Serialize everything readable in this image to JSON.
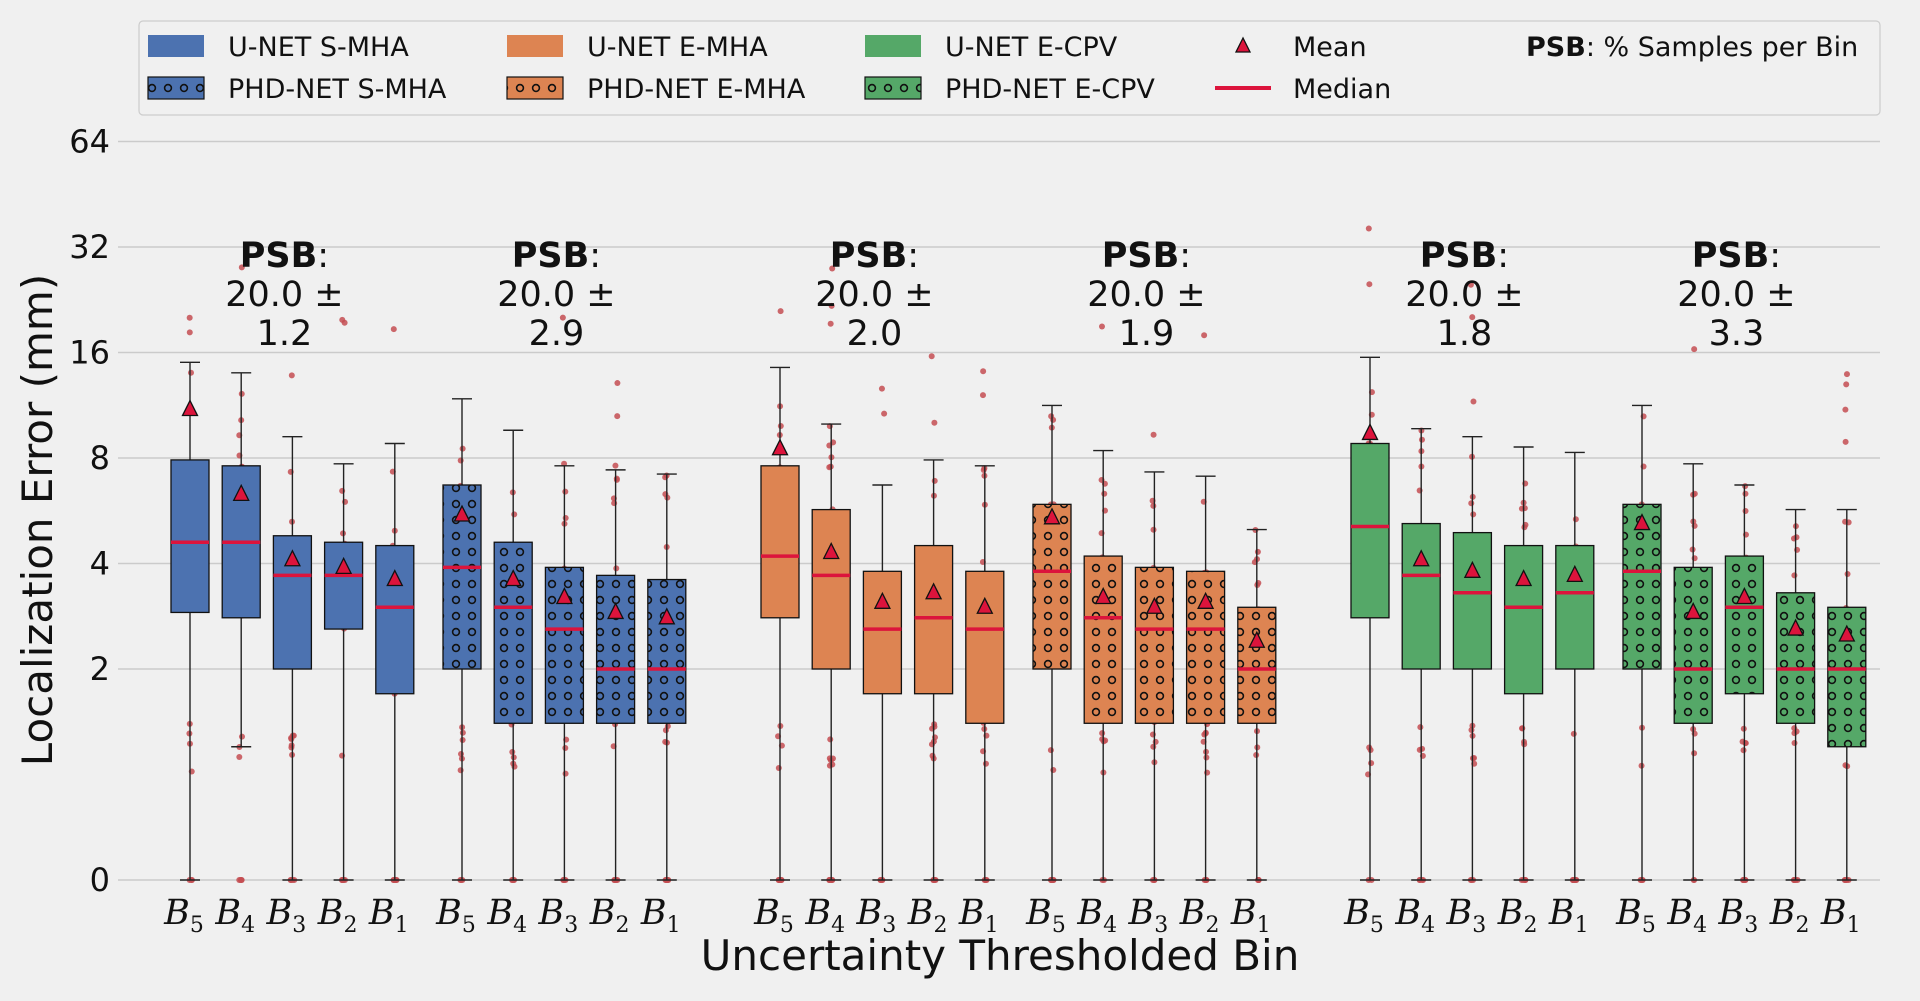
{
  "chart_data": {
    "type": "box",
    "xlabel": "Uncertainty Thresholded Bin",
    "ylabel": "Localization Error (mm)",
    "y_scale": "symlog",
    "y_ticks": [
      0,
      2,
      4,
      8,
      16,
      32,
      64
    ],
    "y_tick_labels": [
      "0",
      "2",
      "4",
      "8",
      "16",
      "32",
      "64"
    ],
    "bin_labels": [
      "B5",
      "B4",
      "B3",
      "B2",
      "B1"
    ],
    "colors": {
      "s_mha": "#4c72b0",
      "e_mha": "#dd8452",
      "e_cpv": "#55a868",
      "median": "#dc143c",
      "mean": "#dc143c",
      "points": "#c44e52"
    },
    "legend": {
      "entries": [
        {
          "label": "U-NET S-MHA",
          "color": "#4c72b0",
          "hatch": false
        },
        {
          "label": "PHD-NET S-MHA",
          "color": "#4c72b0",
          "hatch": true
        },
        {
          "label": "U-NET E-MHA",
          "color": "#dd8452",
          "hatch": false
        },
        {
          "label": "PHD-NET E-MHA",
          "color": "#dd8452",
          "hatch": true
        },
        {
          "label": "U-NET E-CPV",
          "color": "#55a868",
          "hatch": false
        },
        {
          "label": "PHD-NET E-CPV",
          "color": "#55a868",
          "hatch": true
        },
        {
          "label": "Mean",
          "marker": "triangle"
        },
        {
          "label": "Median",
          "marker": "line"
        }
      ],
      "psb_note_bold": "PSB",
      "psb_note_rest": ": % Samples per Bin"
    },
    "groups": [
      {
        "name": "U-NET S-MHA",
        "color": "#4c72b0",
        "hatch": false,
        "psb_bold": "PSB",
        "psb_colon": ":",
        "psb_value": "20.0 ±",
        "psb_std": "1.2",
        "boxes": [
          {
            "bin": "B5",
            "q1": 2.9,
            "median": 4.6,
            "q3": 7.9,
            "whisker_low": 0,
            "whisker_high": 15,
            "mean": 11.0
          },
          {
            "bin": "B4",
            "q1": 2.8,
            "median": 4.6,
            "q3": 7.6,
            "whisker_low": 1.2,
            "whisker_high": 14,
            "mean": 6.3
          },
          {
            "bin": "B3",
            "q1": 2.0,
            "median": 3.7,
            "q3": 4.8,
            "whisker_low": 0,
            "whisker_high": 9.2,
            "mean": 4.1
          },
          {
            "bin": "B2",
            "q1": 2.6,
            "median": 3.7,
            "q3": 4.6,
            "whisker_low": 0,
            "whisker_high": 7.7,
            "mean": 3.9
          },
          {
            "bin": "B1",
            "q1": 1.7,
            "median": 3.0,
            "q3": 4.5,
            "whisker_low": 0,
            "whisker_high": 8.8,
            "mean": 3.6
          }
        ]
      },
      {
        "name": "PHD-NET S-MHA",
        "color": "#4c72b0",
        "hatch": true,
        "psb_bold": "PSB",
        "psb_colon": ":",
        "psb_value": "20.0 ±",
        "psb_std": "2.9",
        "boxes": [
          {
            "bin": "B5",
            "q1": 2.0,
            "median": 3.9,
            "q3": 6.7,
            "whisker_low": 0,
            "whisker_high": 11.8,
            "mean": 5.5
          },
          {
            "bin": "B4",
            "q1": 1.4,
            "median": 3.0,
            "q3": 4.6,
            "whisker_low": 0,
            "whisker_high": 9.6,
            "mean": 3.6
          },
          {
            "bin": "B3",
            "q1": 1.4,
            "median": 2.6,
            "q3": 3.9,
            "whisker_low": 0,
            "whisker_high": 7.6,
            "mean": 3.2
          },
          {
            "bin": "B2",
            "q1": 1.4,
            "median": 2.0,
            "q3": 3.7,
            "whisker_low": 0,
            "whisker_high": 7.4,
            "mean": 2.9
          },
          {
            "bin": "B1",
            "q1": 1.4,
            "median": 2.0,
            "q3": 3.6,
            "whisker_low": 0,
            "whisker_high": 7.2,
            "mean": 2.8
          }
        ]
      },
      {
        "name": "U-NET E-MHA",
        "color": "#dd8452",
        "hatch": false,
        "psb_bold": "PSB",
        "psb_colon": ":",
        "psb_value": "20.0 ±",
        "psb_std": "2.0",
        "boxes": [
          {
            "bin": "B5",
            "q1": 2.8,
            "median": 4.2,
            "q3": 7.6,
            "whisker_low": 0,
            "whisker_high": 14.5,
            "mean": 8.5
          },
          {
            "bin": "B4",
            "q1": 2.0,
            "median": 3.7,
            "q3": 5.7,
            "whisker_low": 0,
            "whisker_high": 10.0,
            "mean": 4.3
          },
          {
            "bin": "B3",
            "q1": 1.7,
            "median": 2.6,
            "q3": 3.8,
            "whisker_low": 0,
            "whisker_high": 6.7,
            "mean": 3.1
          },
          {
            "bin": "B2",
            "q1": 1.7,
            "median": 2.8,
            "q3": 4.5,
            "whisker_low": 0,
            "whisker_high": 7.9,
            "mean": 3.3
          },
          {
            "bin": "B1",
            "q1": 1.4,
            "median": 2.6,
            "q3": 3.8,
            "whisker_low": 0,
            "whisker_high": 7.6,
            "mean": 3.0
          }
        ]
      },
      {
        "name": "PHD-NET E-MHA",
        "color": "#dd8452",
        "hatch": true,
        "psb_bold": "PSB",
        "psb_colon": ":",
        "psb_value": "20.0 ±",
        "psb_std": "1.9",
        "boxes": [
          {
            "bin": "B5",
            "q1": 2.0,
            "median": 3.8,
            "q3": 5.9,
            "whisker_low": 0,
            "whisker_high": 11.3,
            "mean": 5.4
          },
          {
            "bin": "B4",
            "q1": 1.4,
            "median": 2.8,
            "q3": 4.2,
            "whisker_low": 0,
            "whisker_high": 8.4,
            "mean": 3.2
          },
          {
            "bin": "B3",
            "q1": 1.4,
            "median": 2.6,
            "q3": 3.9,
            "whisker_low": 0,
            "whisker_high": 7.3,
            "mean": 3.0
          },
          {
            "bin": "B2",
            "q1": 1.4,
            "median": 2.6,
            "q3": 3.8,
            "whisker_low": 0,
            "whisker_high": 7.1,
            "mean": 3.1
          },
          {
            "bin": "B1",
            "q1": 1.4,
            "median": 2.0,
            "q3": 3.0,
            "whisker_low": 0,
            "whisker_high": 5.0,
            "mean": 2.4
          }
        ]
      },
      {
        "name": "U-NET E-CPV",
        "color": "#55a868",
        "hatch": false,
        "psb_bold": "PSB",
        "psb_colon": ":",
        "psb_value": "20.0 ±",
        "psb_std": "1.8",
        "boxes": [
          {
            "bin": "B5",
            "q1": 2.8,
            "median": 5.1,
            "q3": 8.8,
            "whisker_low": 0,
            "whisker_high": 15.5,
            "mean": 9.4
          },
          {
            "bin": "B4",
            "q1": 2.0,
            "median": 3.7,
            "q3": 5.2,
            "whisker_low": 0,
            "whisker_high": 9.7,
            "mean": 4.1
          },
          {
            "bin": "B3",
            "q1": 2.0,
            "median": 3.3,
            "q3": 4.9,
            "whisker_low": 0,
            "whisker_high": 9.2,
            "mean": 3.8
          },
          {
            "bin": "B2",
            "q1": 1.7,
            "median": 3.0,
            "q3": 4.5,
            "whisker_low": 0,
            "whisker_high": 8.6,
            "mean": 3.6
          },
          {
            "bin": "B1",
            "q1": 2.0,
            "median": 3.3,
            "q3": 4.5,
            "whisker_low": 0,
            "whisker_high": 8.3,
            "mean": 3.7
          }
        ]
      },
      {
        "name": "PHD-NET E-CPV",
        "color": "#55a868",
        "hatch": true,
        "psb_bold": "PSB",
        "psb_colon": ":",
        "psb_value": "20.0 ±",
        "psb_std": "3.3",
        "boxes": [
          {
            "bin": "B5",
            "q1": 2.0,
            "median": 3.8,
            "q3": 5.9,
            "whisker_low": 0,
            "whisker_high": 11.3,
            "mean": 5.2
          },
          {
            "bin": "B4",
            "q1": 1.4,
            "median": 2.0,
            "q3": 3.9,
            "whisker_low": 0,
            "whisker_high": 7.7,
            "mean": 2.9
          },
          {
            "bin": "B3",
            "q1": 1.7,
            "median": 3.0,
            "q3": 4.2,
            "whisker_low": 0,
            "whisker_high": 6.7,
            "mean": 3.2
          },
          {
            "bin": "B2",
            "q1": 1.4,
            "median": 2.0,
            "q3": 3.3,
            "whisker_low": 0,
            "whisker_high": 5.7,
            "mean": 2.6
          },
          {
            "bin": "B1",
            "q1": 1.2,
            "median": 2.0,
            "q3": 3.0,
            "whisker_low": 0,
            "whisker_high": 5.7,
            "mean": 2.5
          }
        ]
      }
    ]
  }
}
